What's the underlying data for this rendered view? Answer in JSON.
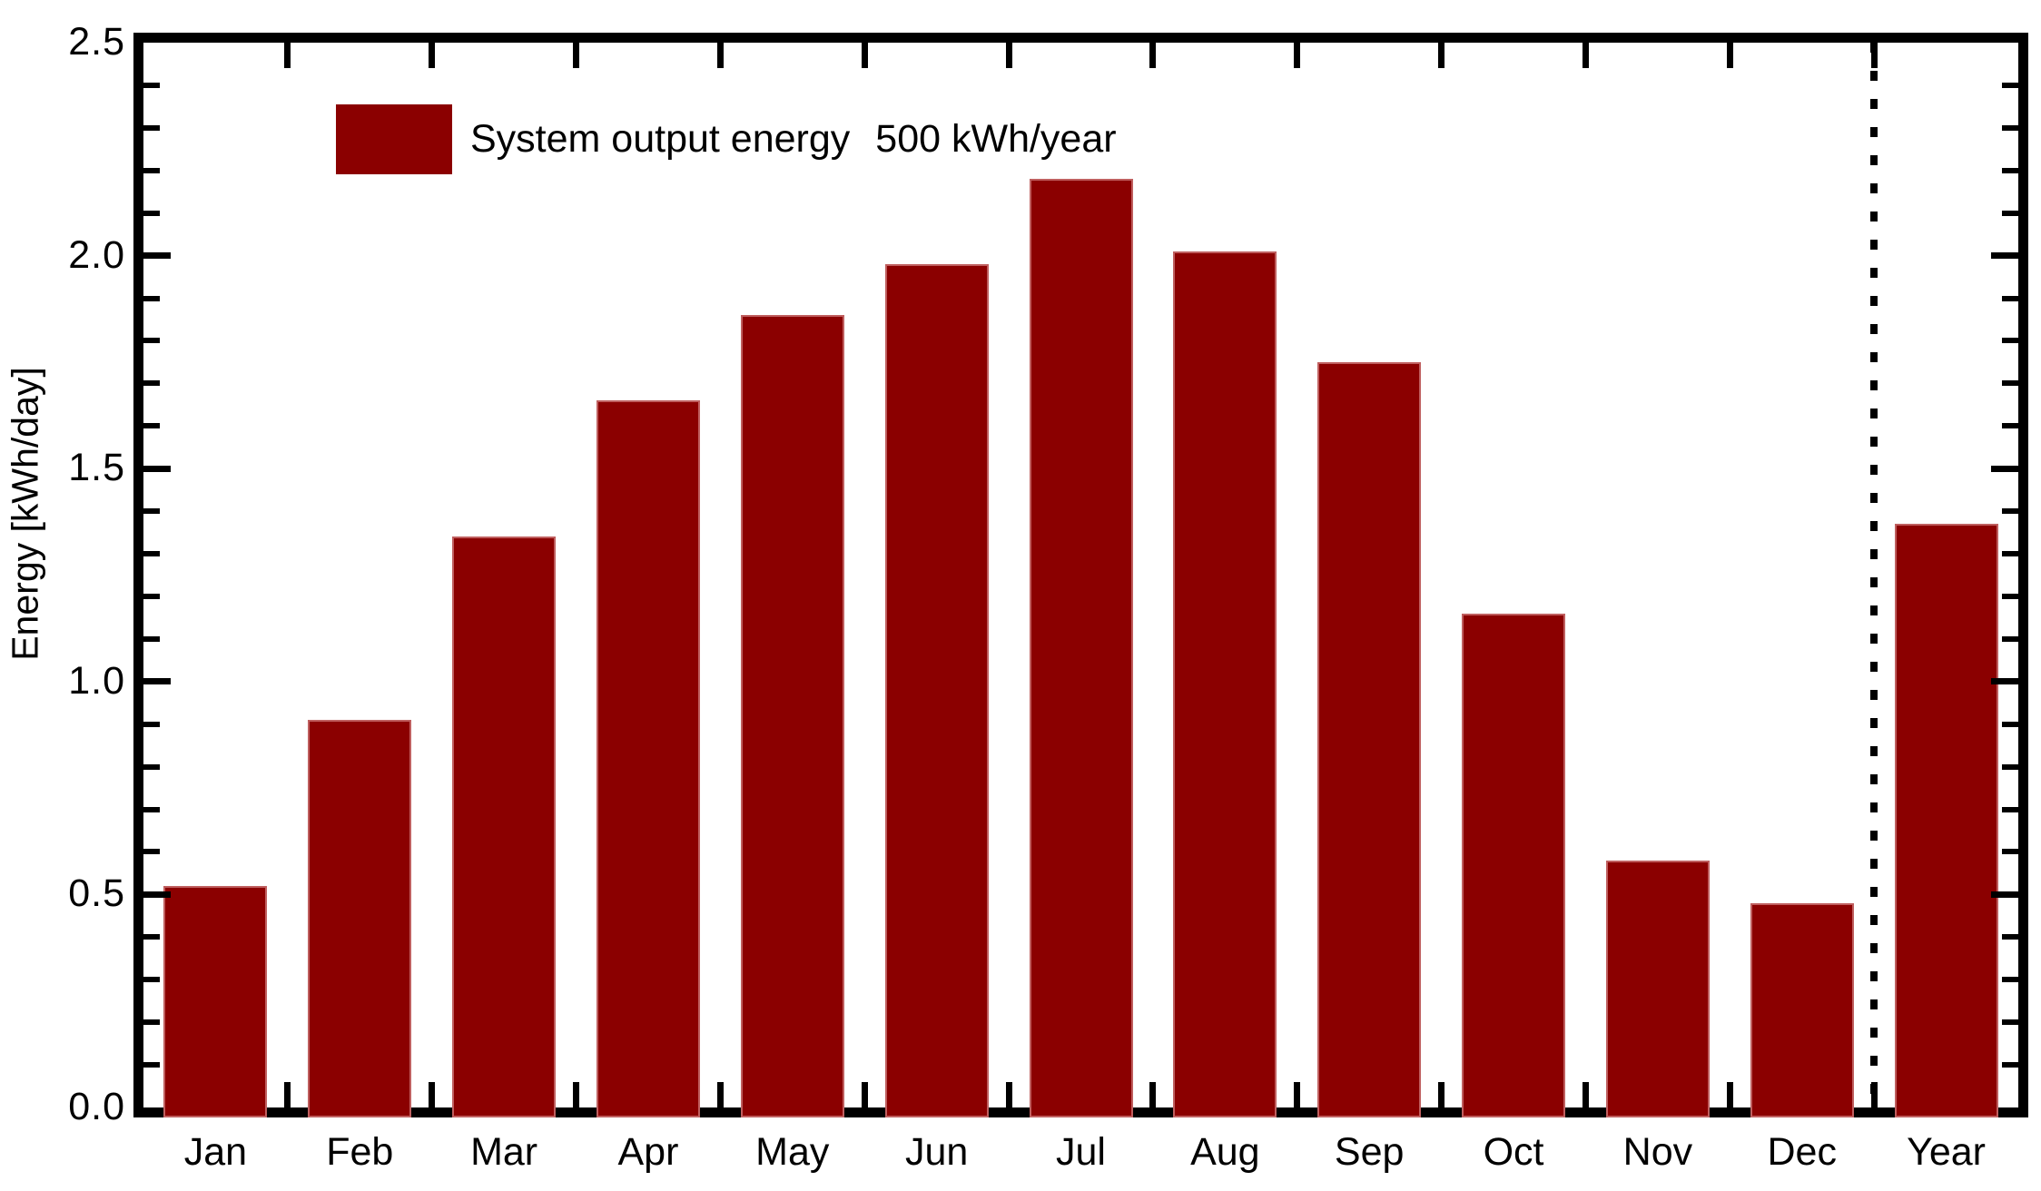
{
  "chart_data": {
    "type": "bar",
    "title": "",
    "xlabel": "",
    "ylabel": "Energy [kWh/day]",
    "categories": [
      "Jan",
      "Feb",
      "Mar",
      "Apr",
      "May",
      "Jun",
      "Jul",
      "Aug",
      "Sep",
      "Oct",
      "Nov",
      "Dec",
      "Year"
    ],
    "values": [
      0.52,
      0.91,
      1.34,
      1.66,
      1.86,
      1.98,
      2.18,
      2.01,
      1.75,
      1.16,
      0.58,
      0.48,
      1.37
    ],
    "ylim": [
      0.0,
      2.5
    ],
    "ytick_major_step": 0.5,
    "ytick_minor_step": 0.1,
    "ytick_labels": [
      "0.0",
      "0.5",
      "1.0",
      "1.5",
      "2.0",
      "2.5"
    ],
    "grid": false,
    "legend": {
      "position": "top-left",
      "label": "System output energy",
      "value": "500 kWh/year"
    },
    "separator": {
      "after_category": "Dec",
      "style": "dotted"
    },
    "colors": {
      "bar": "#8B0000",
      "axis": "#000000",
      "background": "#FFFFFF",
      "text": "#000000"
    }
  }
}
